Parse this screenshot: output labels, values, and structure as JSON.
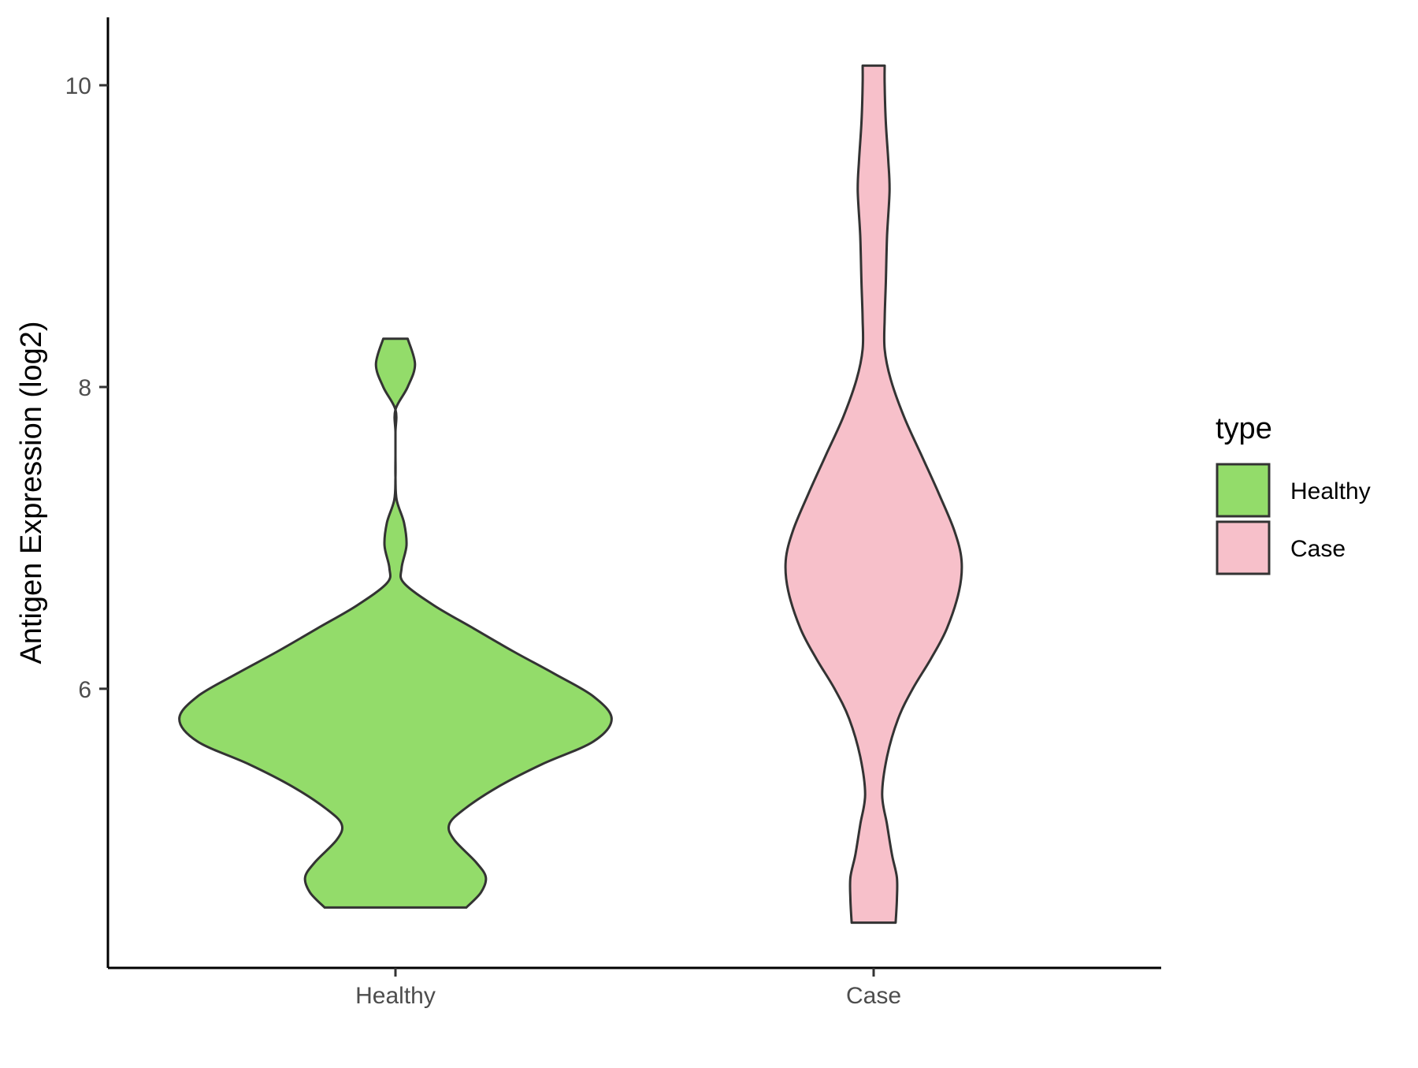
{
  "chart_data": {
    "type": "violin",
    "title": "",
    "xlabel": "",
    "ylabel": "Antigen Expression (log2)",
    "ylim": [
      4.15,
      10.45
    ],
    "yticks": [
      6,
      8,
      10
    ],
    "categories": [
      "Healthy",
      "Case"
    ],
    "grid": false,
    "legend": {
      "title": "type",
      "placement": "right",
      "entries": [
        {
          "label": "Healthy",
          "color": "#93DC6A"
        },
        {
          "label": "Case",
          "color": "#F7C0CA"
        }
      ]
    },
    "series": [
      {
        "name": "Healthy",
        "color": "#93DC6A",
        "y_min": 4.55,
        "y_max": 8.32,
        "density_profile": [
          [
            4.55,
            0.58
          ],
          [
            4.65,
            0.7
          ],
          [
            4.75,
            0.74
          ],
          [
            4.85,
            0.66
          ],
          [
            5.0,
            0.48
          ],
          [
            5.1,
            0.44
          ],
          [
            5.2,
            0.56
          ],
          [
            5.35,
            0.84
          ],
          [
            5.5,
            1.2
          ],
          [
            5.65,
            1.62
          ],
          [
            5.8,
            1.77
          ],
          [
            5.95,
            1.62
          ],
          [
            6.1,
            1.3
          ],
          [
            6.25,
            0.96
          ],
          [
            6.4,
            0.64
          ],
          [
            6.55,
            0.32
          ],
          [
            6.7,
            0.07
          ],
          [
            6.8,
            0.05
          ],
          [
            6.95,
            0.09
          ],
          [
            7.1,
            0.07
          ],
          [
            7.25,
            0.01
          ],
          [
            7.4,
            0.0
          ],
          [
            7.55,
            0.0
          ],
          [
            7.7,
            0.0
          ],
          [
            7.85,
            0.0
          ],
          [
            8.0,
            0.1
          ],
          [
            8.15,
            0.16
          ],
          [
            8.32,
            0.1
          ]
        ]
      },
      {
        "name": "Case",
        "color": "#F7C0CA",
        "y_min": 4.45,
        "y_max": 10.13,
        "density_profile": [
          [
            4.45,
            0.18
          ],
          [
            4.6,
            0.19
          ],
          [
            4.75,
            0.19
          ],
          [
            4.9,
            0.15
          ],
          [
            5.1,
            0.11
          ],
          [
            5.3,
            0.07
          ],
          [
            5.55,
            0.11
          ],
          [
            5.8,
            0.2
          ],
          [
            6.0,
            0.32
          ],
          [
            6.2,
            0.47
          ],
          [
            6.4,
            0.6
          ],
          [
            6.65,
            0.7
          ],
          [
            6.85,
            0.72
          ],
          [
            7.05,
            0.66
          ],
          [
            7.3,
            0.53
          ],
          [
            7.55,
            0.39
          ],
          [
            7.8,
            0.25
          ],
          [
            8.05,
            0.14
          ],
          [
            8.25,
            0.09
          ],
          [
            8.45,
            0.09
          ],
          [
            8.7,
            0.1
          ],
          [
            9.0,
            0.11
          ],
          [
            9.3,
            0.13
          ],
          [
            9.5,
            0.12
          ],
          [
            9.75,
            0.1
          ],
          [
            10.0,
            0.09
          ],
          [
            10.13,
            0.09
          ]
        ]
      }
    ]
  }
}
